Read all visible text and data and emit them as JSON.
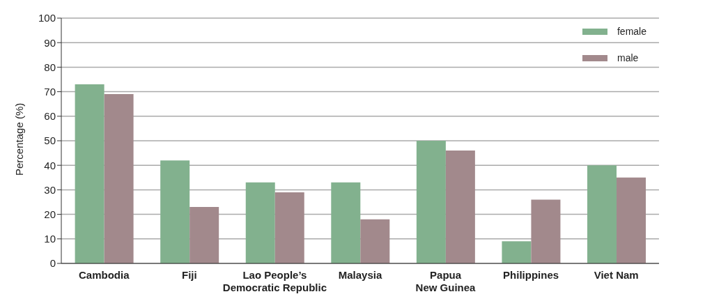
{
  "chart_data": {
    "type": "bar",
    "ylabel": "Percentage (%)",
    "categories": [
      "Cambodia",
      "Fiji",
      "Lao People’s\nDemocratic Republic",
      "Malaysia",
      "Papua\nNew Guinea",
      "Philippines",
      "Viet Nam"
    ],
    "series": [
      {
        "name": "female",
        "color": "#82b18e",
        "values": [
          73,
          42,
          33,
          33,
          50,
          9,
          40
        ]
      },
      {
        "name": "male",
        "color": "#a2898c",
        "values": [
          69,
          23,
          29,
          18,
          46,
          26,
          35
        ]
      }
    ],
    "ylim": [
      0,
      100
    ],
    "yticks": [
      0,
      10,
      20,
      30,
      40,
      50,
      60,
      70,
      80,
      90,
      100
    ],
    "grid": "y",
    "legend": "top right"
  }
}
